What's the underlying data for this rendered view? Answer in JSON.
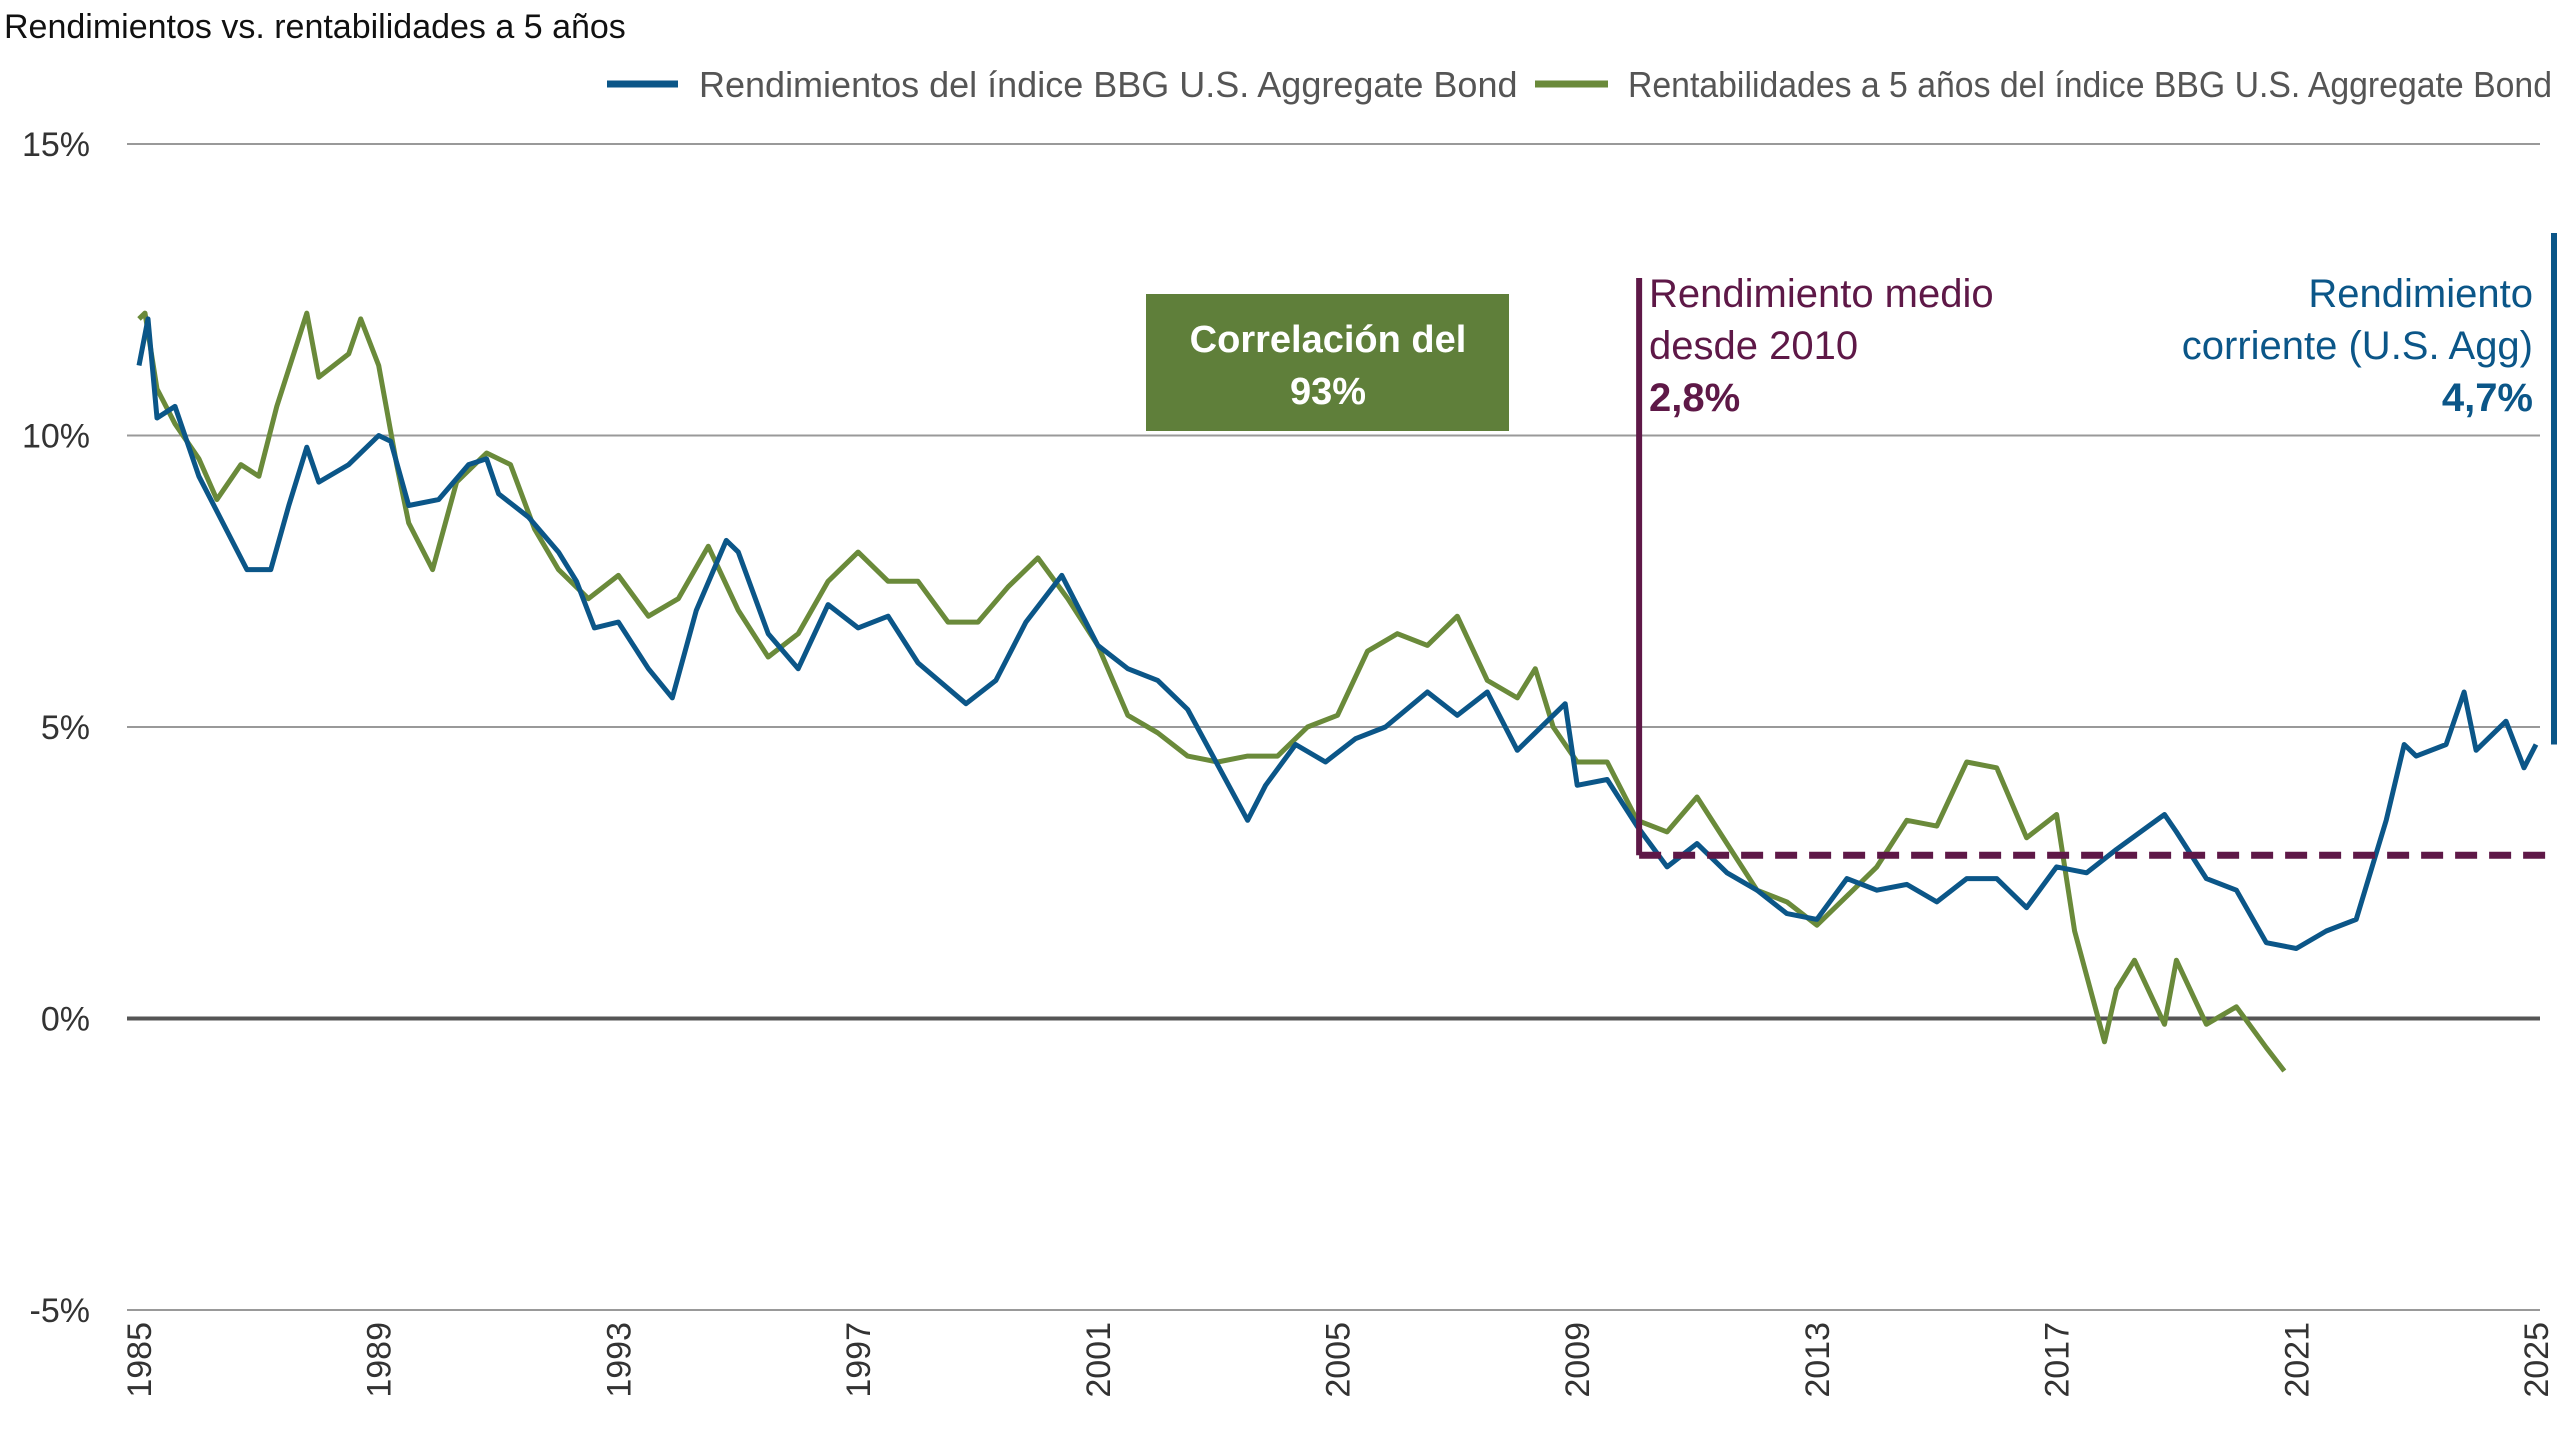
{
  "chart_data": {
    "type": "line",
    "title": "Rendimientos vs. rentabilidades a 5 años",
    "ylim": [
      -5,
      15
    ],
    "yticks": [
      15,
      10,
      5,
      0,
      -5
    ],
    "ytick_labels": [
      "15%",
      "10%",
      "5%",
      "0%",
      "-5%"
    ],
    "xlim": [
      1985,
      2025
    ],
    "xticks": [
      "1985",
      "1989",
      "1993",
      "1997",
      "2001",
      "2005",
      "2009",
      "2013",
      "2017",
      "2021",
      "2025"
    ],
    "grid": true,
    "legend_position": "top-right",
    "series": [
      {
        "name": "Rendimientos del índice BBG U.S. Aggregate Bond",
        "color": "#0b5688",
        "x": [
          1985,
          1985.15,
          1985.3,
          1985.6,
          1986,
          1986.5,
          1986.8,
          1987.2,
          1987.5,
          1987.8,
          1988,
          1988.5,
          1989,
          1989.2,
          1989.5,
          1990,
          1990.5,
          1990.8,
          1991,
          1991.5,
          1992,
          1992.3,
          1992.6,
          1993,
          1993.5,
          1993.9,
          1994.3,
          1994.8,
          1995,
          1995.5,
          1996,
          1996.5,
          1997,
          1997.5,
          1998,
          1998.8,
          1999.3,
          1999.8,
          2000.4,
          2001,
          2001.5,
          2002,
          2002.5,
          2003.5,
          2003.8,
          2004.3,
          2004.8,
          2005.3,
          2005.8,
          2006.5,
          2007,
          2007.5,
          2008,
          2008.8,
          2009,
          2009.5,
          2010,
          2010.5,
          2011,
          2011.5,
          2012,
          2012.5,
          2013,
          2013.5,
          2014,
          2014.5,
          2015,
          2015.5,
          2016,
          2016.5,
          2017,
          2017.5,
          2018,
          2018.8,
          2019,
          2019.5,
          2020,
          2020.5,
          2021,
          2021.5,
          2022,
          2022.5,
          2022.8,
          2023,
          2023.5,
          2023.8,
          2024,
          2024.5,
          2024.8,
          2025
        ],
        "values": [
          11.2,
          12.0,
          10.3,
          10.5,
          9.3,
          8.3,
          7.7,
          7.7,
          8.8,
          9.8,
          9.2,
          9.5,
          10.0,
          9.9,
          8.8,
          8.9,
          9.5,
          9.6,
          9.0,
          8.6,
          8.0,
          7.5,
          6.7,
          6.8,
          6.0,
          5.5,
          7.0,
          8.2,
          8.0,
          6.6,
          6.0,
          7.1,
          6.7,
          6.9,
          6.1,
          5.4,
          5.8,
          6.8,
          7.6,
          6.4,
          6.0,
          5.8,
          5.3,
          3.4,
          4.0,
          4.7,
          4.4,
          4.8,
          5.0,
          5.6,
          5.2,
          5.6,
          4.6,
          5.4,
          4.0,
          4.1,
          3.3,
          2.6,
          3.0,
          2.5,
          2.2,
          1.8,
          1.7,
          2.4,
          2.2,
          2.3,
          2.0,
          2.4,
          2.4,
          1.9,
          2.6,
          2.5,
          2.9,
          3.5,
          3.2,
          2.4,
          2.2,
          1.3,
          1.2,
          1.5,
          1.7,
          3.4,
          4.7,
          4.5,
          4.7,
          5.6,
          4.6,
          5.1,
          4.3,
          4.7
        ]
      },
      {
        "name": "Rentabilidades a 5 años del índice BBG U.S. Aggregate Bond",
        "color": "#6a8a3a",
        "x": [
          1985,
          1985.1,
          1985.3,
          1985.6,
          1986,
          1986.3,
          1986.7,
          1987,
          1987.3,
          1987.8,
          1988,
          1988.5,
          1988.7,
          1989,
          1989.3,
          1989.5,
          1989.9,
          1990.3,
          1990.8,
          1991.2,
          1991.6,
          1992,
          1992.5,
          1993,
          1993.5,
          1994,
          1994.5,
          1995,
          1995.5,
          1996,
          1996.5,
          1997,
          1997.5,
          1998,
          1998.5,
          1999,
          1999.5,
          2000,
          2000.5,
          2001,
          2001.5,
          2002,
          2002.5,
          2003,
          2003.5,
          2004,
          2004.5,
          2005,
          2005.5,
          2006,
          2006.5,
          2007,
          2007.5,
          2008,
          2008.3,
          2008.6,
          2009,
          2009.5,
          2010,
          2010.5,
          2011,
          2011.5,
          2012,
          2012.5,
          2013,
          2013.5,
          2014,
          2014.5,
          2015,
          2015.5,
          2016,
          2016.5,
          2017,
          2017.3,
          2017.8,
          2018,
          2018.3,
          2018.8,
          2019,
          2019.5,
          2020,
          2020.5,
          2020.8
        ],
        "values": [
          12.0,
          12.1,
          10.8,
          10.2,
          9.6,
          8.9,
          9.5,
          9.3,
          10.5,
          12.1,
          11.0,
          11.4,
          12.0,
          11.2,
          9.5,
          8.5,
          7.7,
          9.2,
          9.7,
          9.5,
          8.4,
          7.7,
          7.2,
          7.6,
          6.9,
          7.2,
          8.1,
          7.0,
          6.2,
          6.6,
          7.5,
          8.0,
          7.5,
          7.5,
          6.8,
          6.8,
          7.4,
          7.9,
          7.2,
          6.4,
          5.2,
          4.9,
          4.5,
          4.4,
          4.5,
          4.5,
          5.0,
          5.2,
          6.3,
          6.6,
          6.4,
          6.9,
          5.8,
          5.5,
          6.0,
          5.0,
          4.4,
          4.4,
          3.4,
          3.2,
          3.8,
          3.0,
          2.2,
          2.0,
          1.6,
          2.1,
          2.6,
          3.4,
          3.3,
          4.4,
          4.3,
          3.1,
          3.5,
          1.5,
          -0.4,
          0.5,
          1.0,
          -0.1,
          1.0,
          -0.1,
          0.2,
          -0.5,
          -0.9
        ]
      }
    ],
    "annotations": {
      "correlation": {
        "lines": [
          "Correlación del",
          "93%"
        ],
        "color": "#5f7f3a"
      },
      "average": {
        "lines": [
          "Rendimiento medio",
          "desde 2010",
          "2,8%"
        ],
        "value": 2.8,
        "since": 2010,
        "color": "#5e1847"
      },
      "current": {
        "lines": [
          "Rendimiento",
          "corriente (U.S. Agg)",
          "4,7%"
        ],
        "value": 4.7,
        "color": "#0b5688"
      }
    }
  }
}
